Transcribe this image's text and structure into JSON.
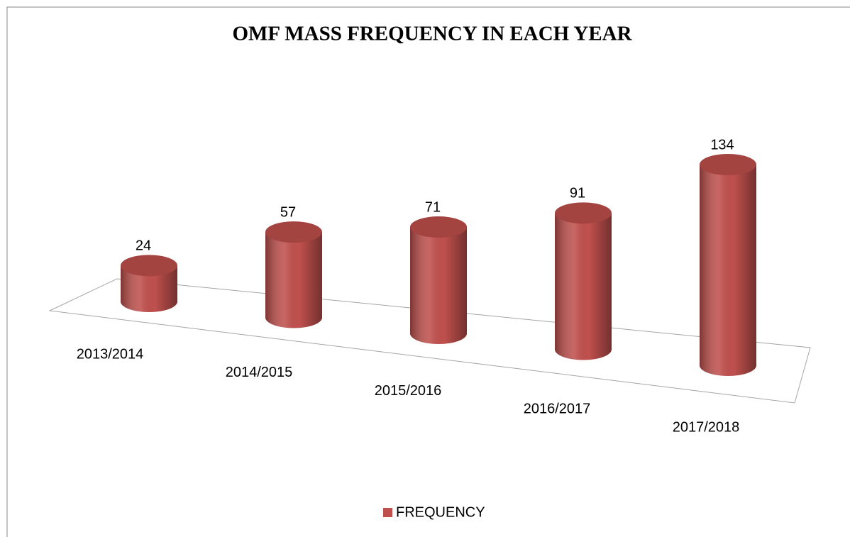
{
  "chart_data": {
    "type": "bar3d",
    "title": "OMF MASS FREQUENCY IN EACH YEAR",
    "categories": [
      "2013/2014",
      "2014/2015",
      "2015/2016",
      "2016/2017",
      "2017/2018"
    ],
    "series": [
      {
        "name": "FREQUENCY",
        "color": "#c0504d",
        "values": [
          24,
          57,
          71,
          91,
          134
        ]
      }
    ],
    "legend": "bottom"
  }
}
